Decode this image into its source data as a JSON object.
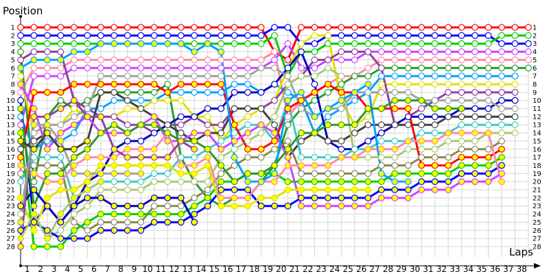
{
  "chart_data": {
    "type": "line",
    "ylabel": "Position",
    "xlabel": "Laps",
    "x_ticks": [
      1,
      2,
      3,
      4,
      5,
      6,
      7,
      8,
      9,
      10,
      11,
      12,
      13,
      14,
      15,
      16,
      17,
      18,
      19,
      20,
      21,
      22,
      23,
      24,
      25,
      26,
      27,
      28,
      29,
      30,
      31,
      32,
      33,
      34,
      35,
      36,
      37,
      38
    ],
    "y_ticks": [
      1,
      2,
      3,
      4,
      5,
      6,
      7,
      8,
      9,
      10,
      11,
      12,
      13,
      14,
      15,
      16,
      17,
      18,
      19,
      20,
      21,
      22,
      23,
      24,
      25,
      26,
      27,
      28
    ],
    "xlim": [
      0,
      38
    ],
    "ylim": [
      1,
      28
    ],
    "y_inverted": true,
    "grid": true,
    "series": [
      {
        "color": "#ff0000",
        "marker_fill": "#ffffff",
        "values": [
          1,
          1,
          1,
          1,
          1,
          1,
          1,
          1,
          1,
          1,
          1,
          1,
          1,
          1,
          1,
          1,
          1,
          1,
          1,
          4,
          5,
          1,
          1,
          1,
          1,
          1,
          1,
          1,
          1,
          1,
          1,
          1,
          1,
          1,
          1,
          1,
          1,
          1,
          1
        ]
      },
      {
        "color": "#0000ff",
        "marker_fill": "#ffffff",
        "values": [
          2,
          2,
          2,
          2,
          2,
          2,
          2,
          2,
          2,
          2,
          2,
          2,
          2,
          2,
          2,
          2,
          2,
          2,
          2,
          1,
          1,
          3,
          3,
          2,
          2,
          2,
          2,
          2,
          2,
          2,
          2,
          2,
          2,
          2,
          2,
          2,
          3,
          3,
          3
        ]
      },
      {
        "color": "#00cc00",
        "marker_fill": "#ffffff",
        "values": [
          3,
          3,
          3,
          3,
          3,
          3,
          3,
          3,
          3,
          3,
          3,
          3,
          3,
          3,
          3,
          3,
          3,
          3,
          3,
          2,
          7,
          4,
          4,
          3,
          3,
          3,
          3,
          3,
          3,
          3,
          3,
          3,
          3,
          3,
          3,
          3,
          2,
          2,
          2
        ]
      },
      {
        "color": "#cc44ff",
        "marker_fill": "#ffffff",
        "values": [
          13,
          7,
          7,
          7,
          6,
          6,
          6,
          6,
          6,
          6,
          6,
          6,
          6,
          6,
          6,
          6,
          6,
          6,
          6,
          5,
          3,
          6,
          6,
          5,
          5,
          5,
          4,
          4,
          4,
          4,
          4,
          4,
          4,
          4,
          4,
          4,
          4,
          4,
          4
        ]
      },
      {
        "color": "#ff88aa",
        "marker_fill": "#ffffff",
        "values": [
          9,
          6,
          6,
          6,
          5,
          5,
          5,
          5,
          5,
          5,
          5,
          5,
          5,
          5,
          5,
          5,
          5,
          5,
          5,
          4,
          12,
          10,
          9,
          8,
          7,
          7,
          6,
          5,
          5,
          5,
          5,
          5,
          5,
          5,
          5,
          5,
          5,
          5,
          5
        ]
      },
      {
        "color": "#2a9a2a",
        "marker_fill": "#ffffff",
        "values": [
          4,
          20,
          12,
          10,
          11,
          10,
          9,
          9,
          9,
          9,
          9,
          8,
          17,
          20,
          22,
          23,
          22,
          22,
          20,
          18,
          13,
          11,
          10,
          9,
          8,
          7,
          7,
          6,
          6,
          6,
          6,
          6,
          6,
          6,
          6,
          6,
          6,
          6,
          6
        ]
      },
      {
        "color": "#00a0ff",
        "marker_fill": "#ffffff",
        "values": [
          12,
          16,
          15,
          15,
          14,
          11,
          11,
          10,
          10,
          10,
          10,
          9,
          9,
          9,
          9,
          9,
          8,
          8,
          9,
          8,
          9,
          10,
          14,
          12,
          11,
          10,
          9,
          7,
          7,
          7,
          7,
          7,
          7,
          7,
          7,
          7,
          7,
          7
        ]
      },
      {
        "color": "#e0e000",
        "marker_fill": "#ffffff",
        "values": [
          7,
          14,
          13,
          13,
          11,
          12,
          12,
          12,
          11,
          11,
          10,
          10,
          10,
          12,
          12,
          15,
          13,
          12,
          11,
          10,
          6,
          3,
          2,
          2,
          10,
          13,
          12,
          8,
          8,
          8,
          8,
          8,
          8,
          8,
          8,
          8,
          8,
          8
        ]
      },
      {
        "color": "#9040a0",
        "marker_fill": "#ffffff",
        "values": [
          5,
          4,
          4,
          4,
          10,
          11,
          12,
          12,
          13,
          13,
          14,
          13,
          13,
          12,
          13,
          13,
          11,
          11,
          11,
          10,
          8,
          7,
          5,
          5,
          4,
          4,
          4,
          6,
          13,
          12,
          11,
          10,
          9,
          9,
          9,
          9,
          9,
          9
        ]
      },
      {
        "color": "#0000c0",
        "marker_fill": "#ffffff",
        "values": [
          10,
          25,
          23,
          25,
          23,
          20,
          19,
          16,
          15,
          15,
          14,
          13,
          12,
          12,
          11,
          11,
          9,
          9,
          9,
          8,
          6,
          4,
          8,
          15,
          16,
          16,
          15,
          14,
          13,
          12,
          12,
          12,
          12,
          11,
          11,
          11,
          10,
          10
        ]
      },
      {
        "color": "#a0a0a0",
        "marker_fill": "#ffffff",
        "values": [
          24,
          14,
          13,
          13,
          12,
          11,
          7,
          7,
          7,
          7,
          7,
          7,
          7,
          7,
          7,
          7,
          7,
          7,
          6,
          6,
          7,
          11,
          12,
          11,
          11,
          9,
          9,
          9,
          9,
          9,
          10,
          10,
          10,
          10,
          10,
          10,
          11,
          11
        ]
      },
      {
        "color": "#404040",
        "marker_fill": "#ffffff",
        "values": [
          16,
          15,
          14,
          16,
          16,
          15,
          9,
          9,
          10,
          11,
          12,
          13,
          14,
          15,
          14,
          14,
          11,
          11,
          11,
          13,
          17,
          15,
          14,
          15,
          15,
          14,
          13,
          13,
          13,
          13,
          13,
          13,
          12,
          12,
          12,
          12,
          12,
          12
        ]
      },
      {
        "color": "#40c8c8",
        "marker_fill": "#ffffff",
        "values": [
          20,
          17,
          17,
          17,
          22,
          21,
          20,
          20,
          20,
          20,
          19,
          19,
          17,
          17,
          16,
          15,
          14,
          13,
          13,
          15,
          10,
          17,
          17,
          17,
          17,
          16,
          16,
          15,
          15,
          15,
          14,
          14,
          14,
          13,
          13,
          13,
          13,
          13
        ]
      },
      {
        "color": "#a8c870",
        "marker_fill": "#ffffff",
        "values": [
          24,
          24,
          27,
          26,
          24,
          23,
          21,
          21,
          21,
          21,
          20,
          20,
          20,
          20,
          20,
          17,
          16,
          15,
          14,
          12,
          8,
          7,
          7,
          6,
          7,
          17,
          17,
          17,
          17,
          16,
          16,
          16,
          15,
          15,
          15,
          14,
          14,
          14
        ]
      },
      {
        "color": "#888850",
        "marker_fill": "#ffffff",
        "values": [
          19,
          18,
          18,
          18,
          25,
          26,
          25,
          25,
          25,
          25,
          23,
          23,
          23,
          22,
          21,
          19,
          18,
          17,
          17,
          16,
          15,
          19,
          19,
          19,
          19,
          19,
          19,
          18,
          18,
          18,
          17,
          17,
          17,
          16,
          16,
          16,
          15
        ]
      },
      {
        "color": "#ff0000",
        "marker_fill": "#ffff00",
        "values": [
          17,
          9,
          9,
          9,
          8,
          8,
          8,
          8,
          8,
          8,
          8,
          9,
          8,
          8,
          8,
          8,
          13,
          16,
          16,
          15,
          11,
          10,
          9,
          8,
          9,
          9,
          11,
          11,
          11,
          11,
          18,
          18,
          18,
          17,
          17,
          17,
          16
        ]
      },
      {
        "color": "#00cc00",
        "marker_fill": "#ffff00",
        "values": [
          14,
          28,
          28,
          28,
          26,
          25,
          24,
          24,
          24,
          24,
          24,
          24,
          24,
          23,
          22,
          20,
          20,
          19,
          19,
          19,
          20,
          20,
          20,
          20,
          20,
          20,
          20,
          20,
          19,
          19,
          19,
          19,
          19,
          18,
          18,
          18,
          17
        ]
      },
      {
        "color": "#0000ff",
        "marker_fill": "#ffff00",
        "values": [
          26,
          25,
          26,
          27,
          27,
          27,
          26,
          26,
          26,
          26,
          25,
          25,
          25,
          24,
          23,
          21,
          21,
          21,
          23,
          23,
          23,
          22,
          22,
          22,
          22,
          22,
          22,
          21,
          21,
          21,
          20,
          20,
          20,
          19,
          19,
          19,
          18
        ]
      },
      {
        "color": "#cc44ff",
        "marker_fill": "#ffff00",
        "values": [
          8,
          11,
          16,
          14,
          13,
          12,
          14,
          14,
          14,
          13,
          12,
          15,
          15,
          14,
          14,
          16,
          15,
          14,
          13,
          14,
          17,
          23,
          23,
          23,
          23,
          23,
          23,
          22,
          22,
          22,
          21,
          21,
          21,
          20,
          20,
          20,
          19
        ]
      },
      {
        "color": "#ff88aa",
        "marker_fill": "#ffff00",
        "values": [
          18,
          19,
          20,
          20,
          18,
          17,
          17,
          17,
          16,
          16,
          16,
          14,
          18,
          18,
          17,
          22,
          22,
          22,
          20,
          20,
          18,
          18,
          18,
          18,
          17,
          17,
          16,
          16,
          16,
          15,
          15,
          15,
          14,
          14,
          14,
          14,
          20
        ]
      },
      {
        "color": "#00a0ff",
        "marker_fill": "#ffff00",
        "values": [
          6,
          5,
          5,
          5,
          4,
          4,
          3,
          3,
          3,
          3,
          3,
          3,
          3,
          4,
          3,
          4,
          17,
          20,
          20,
          19,
          10,
          9,
          12,
          11,
          10,
          9,
          8,
          19,
          20,
          20
        ]
      },
      {
        "color": "#e0e000",
        "marker_fill": "#ffff00",
        "values": [
          22,
          26,
          22,
          21,
          21,
          20,
          18,
          18,
          18,
          18,
          18,
          18,
          19,
          19,
          18,
          23,
          23,
          23,
          22,
          22,
          21,
          21,
          21,
          21,
          21,
          21,
          21
        ]
      },
      {
        "color": "#2a9a2a",
        "marker_fill": "#ffff00",
        "values": [
          11,
          23,
          19,
          19,
          17,
          16,
          14,
          13,
          14,
          13,
          13,
          14,
          15,
          15,
          16,
          18,
          20,
          19,
          19,
          18,
          16,
          14,
          14,
          13,
          13,
          13,
          11,
          11,
          10,
          10,
          10,
          11,
          11,
          11
        ]
      },
      {
        "color": "#0000c0",
        "marker_fill": "#ffff00",
        "values": [
          23,
          21,
          23,
          25,
          23,
          22,
          22,
          23,
          23,
          23,
          22,
          22,
          22,
          25
        ]
      },
      {
        "color": "#9040a0",
        "marker_fill": "#ffff00",
        "values": [
          28,
          12,
          12,
          11,
          10,
          12,
          12,
          16,
          17,
          17,
          17,
          17,
          15,
          16
        ]
      },
      {
        "color": "#a0a0a0",
        "marker_fill": "#ffff00",
        "values": [
          25,
          13,
          13,
          15,
          19,
          19,
          19,
          19,
          19,
          19
        ]
      },
      {
        "color": "#a8c870",
        "marker_fill": "#ffff00",
        "values": [
          27,
          24,
          27,
          24,
          22,
          21,
          20
        ]
      },
      {
        "color": "#404040",
        "marker_fill": "#ffff00",
        "values": [
          15,
          16,
          14,
          16,
          16,
          15
        ]
      }
    ]
  }
}
